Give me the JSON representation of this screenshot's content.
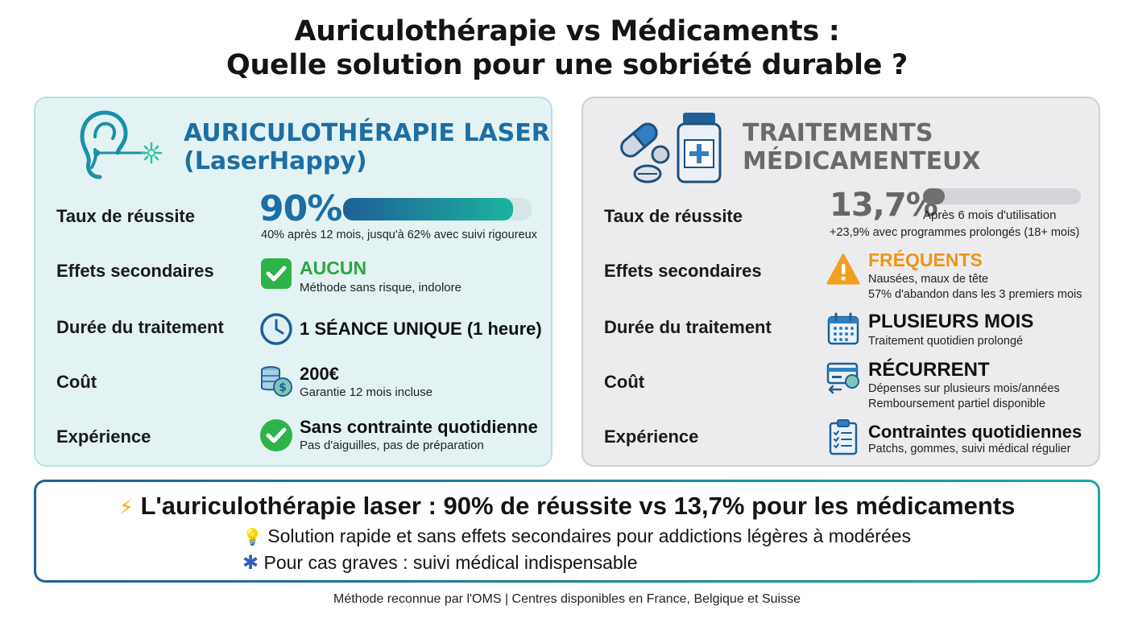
{
  "title": {
    "line1": "Auriculothérapie vs Médicaments :",
    "line2": "Quelle solution pour une sobriété durable ?"
  },
  "left": {
    "title_line1": "AURICULOTHÉRAPIE LASER",
    "title_line2": "(LaserHappy)",
    "header_icon": "ear-laser-icon",
    "rows": {
      "success": {
        "label": "Taux de réussite",
        "value": "90%",
        "progress": 0.9,
        "sub": "40% après 12 mois, jusqu'à 62% avec suivi rigoureux"
      },
      "side_effects": {
        "label": "Effets secondaires",
        "value": "AUCUN",
        "sub": "Méthode sans risque, indolore",
        "icon": "checkbox-icon"
      },
      "duration": {
        "label": "Durée du traitement",
        "value": "1 SÉANCE UNIQUE (1 heure)",
        "icon": "clock-icon"
      },
      "cost": {
        "label": "Coût",
        "value": "200€",
        "sub": "Garantie 12 mois incluse",
        "icon": "coins-icon"
      },
      "experience": {
        "label": "Expérience",
        "value": "Sans contrainte quotidienne",
        "sub": "Pas d'aiguilles, pas de préparation",
        "icon": "check-circle-icon"
      }
    }
  },
  "right": {
    "title_line1": "TRAITEMENTS",
    "title_line2": "MÉDICAMENTEUX",
    "header_icon": "pills-bottle-icon",
    "rows": {
      "success": {
        "label": "Taux de réussite",
        "value": "13,7%",
        "progress": 0.137,
        "sub1": "Après 6 mois d'utilisation",
        "sub2": "+23,9% avec programmes prolongés (18+ mois)"
      },
      "side_effects": {
        "label": "Effets secondaires",
        "value": "FRÉQUENTS",
        "sub1": "Nausées, maux de tête",
        "sub2": "57% d'abandon dans les 3 premiers mois",
        "icon": "warning-icon"
      },
      "duration": {
        "label": "Durée du traitement",
        "value": "PLUSIEURS MOIS",
        "sub": "Traitement quotidien prolongé",
        "icon": "calendar-icon"
      },
      "cost": {
        "label": "Coût",
        "value": "RÉCURRENT",
        "sub1": "Dépenses sur plusieurs mois/années",
        "sub2": "Remboursement partiel disponible",
        "icon": "credit-card-icon"
      },
      "experience": {
        "label": "Expérience",
        "value": "Contraintes quotidiennes",
        "sub": "Patchs, gommes, suivi médical régulier",
        "icon": "clipboard-icon"
      }
    }
  },
  "summary": {
    "headline_icon": "⚡",
    "headline": "L'auriculothérapie laser : 90% de réussite vs 13,7% pour les médicaments",
    "line1_icon": "💡",
    "line1": "Solution rapide et sans effets secondaires pour addictions légères à modérées",
    "line2_icon": "✱",
    "line2": "Pour cas graves : suivi médical indispensable"
  },
  "footer": "Méthode reconnue par l'OMS | Centres disponibles en France, Belgique et Suisse",
  "colors": {
    "accent_blue": "#1c6ea4",
    "accent_teal": "#1aa8a0",
    "check_green": "#2db34a",
    "warning_orange": "#f0a020",
    "muted_gray": "#6a6a6a"
  }
}
